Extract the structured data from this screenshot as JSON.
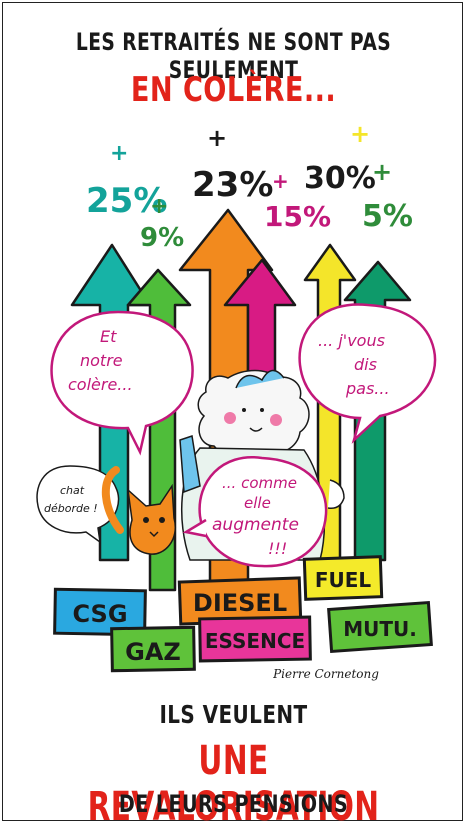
{
  "header": {
    "line1": "LES RETRAITÉS NE SONT PAS SEULEMENT",
    "line2": "EN COLÈRE..."
  },
  "percentages": [
    {
      "sign": "+",
      "value": "25%",
      "color": "#13a39a"
    },
    {
      "sign": "+",
      "value": "9%",
      "color": "#2f8c3a"
    },
    {
      "sign": "+",
      "value": "23%",
      "color": "#1a1a1a"
    },
    {
      "sign": "+",
      "value": "15%",
      "color": "#c2187a"
    },
    {
      "sign": "+",
      "value": "30%",
      "color": "#1a1a1a"
    },
    {
      "sign": "+",
      "value": "5%",
      "color": "#2f8c3a"
    }
  ],
  "bubbles": {
    "left": [
      "Et",
      "notre",
      "colère..."
    ],
    "right": [
      "... j'vous",
      "dis",
      "pas..."
    ],
    "cat": [
      "chat",
      "déborde !"
    ],
    "center": [
      "... comme",
      "elle",
      "augmente",
      "!!!"
    ]
  },
  "signs": {
    "csg": "CSG",
    "gaz": "GAZ",
    "diesel": "DIESEL",
    "fuel": "FUEL",
    "essence": "ESSENCE",
    "mutu": "MUTU."
  },
  "signature": "Pierre Cornetong",
  "footer": {
    "line1": "ILS VEULENT",
    "line2": "UNE REVALORISATION",
    "line3": "DE LEURS PENSIONS"
  },
  "colors": {
    "title_red": "#e2231a",
    "bubble_outline": "#c2187a",
    "csg_sign": "#2aa8e0",
    "gaz_sign": "#5fc23a",
    "diesel_sign": "#f28a1e",
    "fuel_sign": "#f4ea2a",
    "essence_sign": "#e8359a",
    "mutu_sign": "#5fc23a"
  }
}
